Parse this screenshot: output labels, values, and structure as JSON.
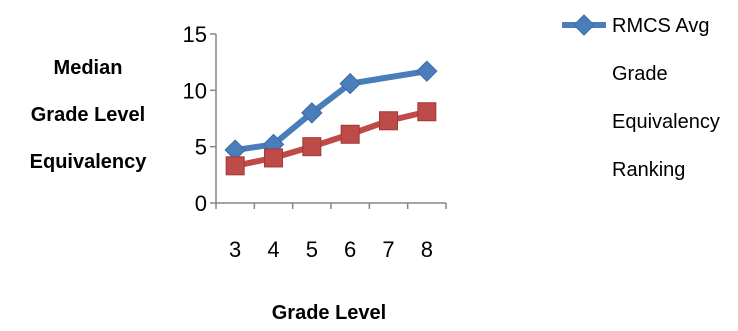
{
  "chart_data": {
    "type": "line",
    "title": "",
    "xlabel": "Grade Level",
    "ylabel_lines": [
      "Median",
      "Grade Level",
      "Equivalency"
    ],
    "categories": [
      "3",
      "4",
      "5",
      "6",
      "7",
      "8"
    ],
    "ylim": [
      0,
      15
    ],
    "yticks": [
      "0",
      "5",
      "10",
      "15"
    ],
    "grid": false,
    "legend_position": "right",
    "series": [
      {
        "name_lines": [
          "RMCS Avg",
          "Grade",
          "Equivalency",
          "Ranking"
        ],
        "x": [
          3,
          4,
          5,
          6,
          8
        ],
        "values": [
          4.7,
          5.2,
          8.0,
          10.6,
          11.7
        ],
        "color": "#4a7ebb",
        "marker": "diamond"
      },
      {
        "x": [
          3,
          4,
          5,
          6,
          7,
          8
        ],
        "values": [
          3.3,
          4.0,
          5.0,
          6.1,
          7.3,
          8.1
        ],
        "color": "#be4b48",
        "marker": "square"
      }
    ]
  }
}
